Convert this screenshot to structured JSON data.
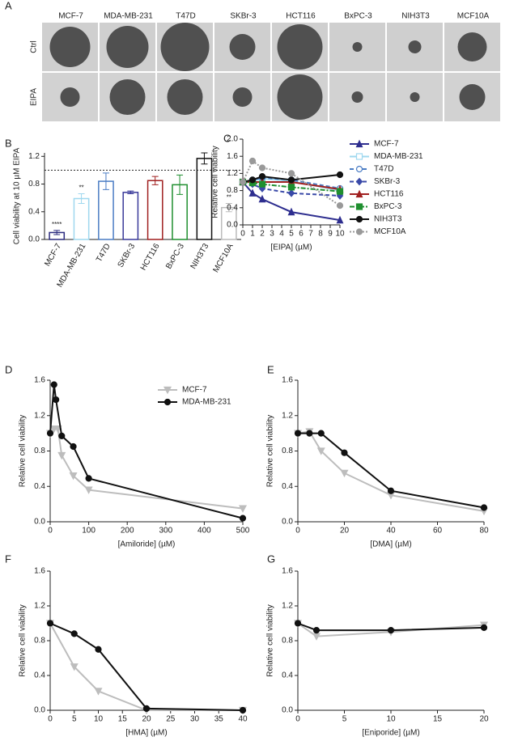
{
  "panel_a": {
    "label": "A",
    "columns": [
      "MCF-7",
      "MDA-MB-231",
      "T47D",
      "SKBr-3",
      "HCT116",
      "BxPC-3",
      "NIH3T3",
      "MCF10A"
    ],
    "rows": [
      "Ctrl",
      "EIPA"
    ]
  },
  "chart_data": [
    {
      "type": "bar",
      "label": "B",
      "y_label": "Cell viability at 10 µM EIPA",
      "categories": [
        "MCF-7",
        "MDA-MB-231",
        "T47D",
        "SKBr-3",
        "HCT116",
        "BxPC-3",
        "NIH3T3",
        "MCF10A"
      ],
      "values": [
        0.1,
        0.59,
        0.84,
        0.68,
        0.85,
        0.79,
        1.17,
        0.46
      ],
      "errors": [
        0.03,
        0.07,
        0.12,
        0.02,
        0.06,
        0.14,
        0.08,
        0.06
      ],
      "significance": [
        "****",
        "**",
        null,
        null,
        null,
        null,
        null,
        "**"
      ],
      "colors": [
        "#2b2b7f",
        "#9fd8ef",
        "#4a7cc4",
        "#3a3a9a",
        "#a01f1f",
        "#1f8f2f",
        "#111111",
        "#bbbbbb"
      ],
      "reference_line": 1.0,
      "ylim": [
        0,
        1.25
      ],
      "yticks": [
        {
          "value": 0,
          "label": "0.0"
        },
        0.4,
        0.8,
        1.2
      ]
    },
    {
      "type": "line",
      "label": "C",
      "x_label": "[EIPA] (µM)",
      "y_label": "Relative cell viability",
      "legend": "right",
      "x": [
        0,
        1,
        2,
        5,
        10
      ],
      "xlim": [
        0,
        10
      ],
      "xticks": [
        0,
        1,
        2,
        3,
        4,
        5,
        6,
        7,
        8,
        9,
        10
      ],
      "ylim": [
        0,
        2.0
      ],
      "yticks": [
        {
          "value": 0,
          "label": "0.0"
        },
        0.4,
        0.8,
        1.2,
        1.6,
        {
          "value": 2,
          "label": "2.0"
        }
      ],
      "series": [
        {
          "name": "MCF-7",
          "color": "#2e2e8f",
          "marker": "triangle-up",
          "dash": "none",
          "values": [
            1,
            0.74,
            0.6,
            0.3,
            0.11
          ]
        },
        {
          "name": "MDA-MB-231",
          "color": "#9fd8ef",
          "marker": "square-open",
          "dash": "none",
          "values": [
            1,
            1.02,
            1.08,
            1.02,
            0.8
          ]
        },
        {
          "name": "T47D",
          "color": "#4a7cc4",
          "marker": "circle-open",
          "dash": "5,3",
          "values": [
            1,
            1.05,
            1.1,
            1.05,
            0.85
          ]
        },
        {
          "name": "SKBr-3",
          "color": "#3a4aa8",
          "marker": "diamond",
          "dash": "5,3",
          "values": [
            1,
            0.95,
            0.85,
            0.74,
            0.68
          ]
        },
        {
          "name": "HCT116",
          "color": "#a02020",
          "marker": "triangle-up",
          "dash": "none",
          "values": [
            1,
            1.0,
            1.0,
            1.0,
            0.83
          ]
        },
        {
          "name": "BxPC-3",
          "color": "#1f8f2f",
          "marker": "square",
          "dash": "6,2,2,2",
          "values": [
            1,
            0.98,
            0.95,
            0.88,
            0.78
          ]
        },
        {
          "name": "NIH3T3",
          "color": "#111111",
          "marker": "circle",
          "dash": "none",
          "values": [
            1,
            1.05,
            1.13,
            1.05,
            1.17
          ]
        },
        {
          "name": "MCF10A",
          "color": "#999999",
          "marker": "circle",
          "dash": "2,2",
          "values": [
            1,
            1.49,
            1.33,
            1.2,
            0.45
          ]
        }
      ]
    },
    {
      "type": "line",
      "label": "D",
      "x_label": "[Amiloride] (µM)",
      "y_label": "Relative cell viability",
      "legend": "top",
      "xlim": [
        0,
        500
      ],
      "xticks": [
        0,
        100,
        200,
        300,
        400,
        500
      ],
      "ylim": [
        0,
        1.6
      ],
      "yticks": [
        {
          "value": 0,
          "label": "0.0"
        },
        0.4,
        0.8,
        1.2,
        1.6
      ],
      "series": [
        {
          "name": "MCF-7",
          "color": "#bdbdbd",
          "marker": "triangle-down",
          "dash": "none",
          "x": [
            0,
            10,
            20,
            30,
            60,
            100,
            500
          ],
          "values": [
            1.0,
            1.05,
            1.05,
            0.75,
            0.52,
            0.36,
            0.15
          ]
        },
        {
          "name": "MDA-MB-231",
          "color": "#111111",
          "marker": "circle",
          "dash": "none",
          "x": [
            0,
            10,
            15,
            30,
            60,
            100,
            500
          ],
          "values": [
            1.0,
            1.55,
            1.38,
            0.97,
            0.85,
            0.49,
            0.04
          ]
        }
      ]
    },
    {
      "type": "line",
      "label": "E",
      "x_label": "[DMA] (µM)",
      "y_label": "Relative cell viability",
      "xlim": [
        0,
        80
      ],
      "xticks": [
        0,
        20,
        40,
        60,
        80
      ],
      "ylim": [
        0,
        1.6
      ],
      "yticks": [
        {
          "value": 0,
          "label": "0.0"
        },
        0.4,
        0.8,
        1.2,
        1.6
      ],
      "series": [
        {
          "color": "#bdbdbd",
          "marker": "triangle-down",
          "dash": "none",
          "x": [
            0,
            5,
            10,
            20,
            40,
            80
          ],
          "values": [
            1.0,
            1.02,
            0.8,
            0.55,
            0.3,
            0.12
          ]
        },
        {
          "color": "#111111",
          "marker": "circle",
          "dash": "none",
          "x": [
            0,
            5,
            10,
            20,
            40,
            80
          ],
          "values": [
            1.0,
            1.0,
            1.0,
            0.78,
            0.35,
            0.16
          ]
        }
      ]
    },
    {
      "type": "line",
      "label": "F",
      "x_label": "[HMA] (µM)",
      "y_label": "Relative cell viability",
      "xlim": [
        0,
        40
      ],
      "xticks": [
        0,
        5,
        10,
        15,
        20,
        25,
        30,
        35,
        40
      ],
      "ylim": [
        0,
        1.6
      ],
      "yticks": [
        {
          "value": 0,
          "label": "0.0"
        },
        0.4,
        0.8,
        1.2,
        1.6
      ],
      "series": [
        {
          "color": "#bdbdbd",
          "marker": "triangle-down",
          "dash": "none",
          "x": [
            0,
            5,
            10,
            20,
            40
          ],
          "values": [
            1.0,
            0.5,
            0.22,
            0.0,
            0.0
          ]
        },
        {
          "color": "#111111",
          "marker": "circle",
          "dash": "none",
          "x": [
            0,
            5,
            10,
            20,
            40
          ],
          "values": [
            1.0,
            0.88,
            0.7,
            0.02,
            0.0
          ]
        }
      ]
    },
    {
      "type": "line",
      "label": "G",
      "x_label": "[Eniporide] (µM)",
      "y_label": "Relative cell viability",
      "xlim": [
        0,
        20
      ],
      "xticks": [
        0,
        5,
        10,
        15,
        20
      ],
      "ylim": [
        0,
        1.6
      ],
      "yticks": [
        {
          "value": 0,
          "label": "0.0"
        },
        0.4,
        0.8,
        1.2,
        1.6
      ],
      "series": [
        {
          "color": "#bdbdbd",
          "marker": "triangle-down",
          "dash": "none",
          "x": [
            0,
            2,
            10,
            20
          ],
          "values": [
            1.0,
            0.85,
            0.9,
            0.98
          ]
        },
        {
          "color": "#111111",
          "marker": "circle",
          "dash": "none",
          "x": [
            0,
            2,
            10,
            20
          ],
          "values": [
            1.0,
            0.92,
            0.92,
            0.95
          ]
        }
      ]
    }
  ]
}
